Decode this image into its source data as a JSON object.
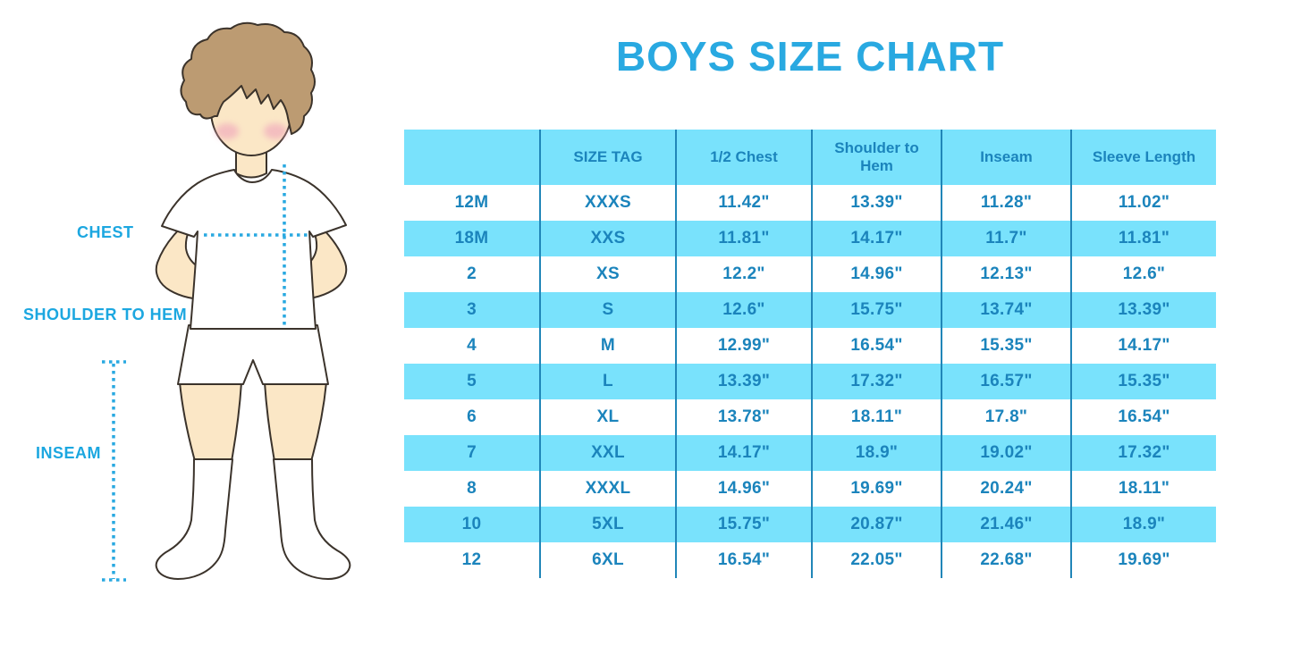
{
  "title": "BOYS SIZE CHART",
  "figure": {
    "description": "cartoon-boy-with-measurement-lines",
    "measurement_labels": [
      {
        "label": "CHEST"
      },
      {
        "label": "SHOULDER TO HEM"
      },
      {
        "label": "INSEAM"
      }
    ]
  },
  "chart_data": {
    "type": "table",
    "title": "BOYS SIZE CHART",
    "columns": [
      "",
      "SIZE TAG",
      "1/2 Chest",
      "Shoulder to Hem",
      "Inseam",
      "Sleeve Length"
    ],
    "rows": [
      [
        "12M",
        "XXXS",
        "11.42\"",
        "13.39\"",
        "11.28\"",
        "11.02\""
      ],
      [
        "18M",
        "XXS",
        "11.81\"",
        "14.17\"",
        "11.7\"",
        "11.81\""
      ],
      [
        "2",
        "XS",
        "12.2\"",
        "14.96\"",
        "12.13\"",
        "12.6\""
      ],
      [
        "3",
        "S",
        "12.6\"",
        "15.75\"",
        "13.74\"",
        "13.39\""
      ],
      [
        "4",
        "M",
        "12.99\"",
        "16.54\"",
        "15.35\"",
        "14.17\""
      ],
      [
        "5",
        "L",
        "13.39\"",
        "17.32\"",
        "16.57\"",
        "15.35\""
      ],
      [
        "6",
        "XL",
        "13.78\"",
        "18.11\"",
        "17.8\"",
        "16.54\""
      ],
      [
        "7",
        "XXL",
        "14.17\"",
        "18.9\"",
        "19.02\"",
        "17.32\""
      ],
      [
        "8",
        "XXXL",
        "14.96\"",
        "19.69\"",
        "20.24\"",
        "18.11\""
      ],
      [
        "10",
        "5XL",
        "15.75\"",
        "20.87\"",
        "21.46\"",
        "18.9\""
      ],
      [
        "12",
        "6XL",
        "16.54\"",
        "22.05\"",
        "22.68\"",
        "19.69\""
      ]
    ],
    "layout_hints": {
      "zebra_highlighted_rows": [
        "18M",
        "3",
        "5",
        "7",
        "10"
      ],
      "header_background": "highlighted",
      "grid": "vertical-lines-only"
    }
  },
  "colors": {
    "title_blue": "#29A9E1",
    "label_blue": "#1CA7E0",
    "table_text_blue": "#1B84BC",
    "row_highlight_blue": "#79E2FC",
    "grid_line_blue": "#2186B8",
    "dotted_line_blue": "#29A9E1",
    "skin": "#FBE7C6",
    "hair_brown": "#BC9B72",
    "blush_pink": "#F0A8BC"
  }
}
